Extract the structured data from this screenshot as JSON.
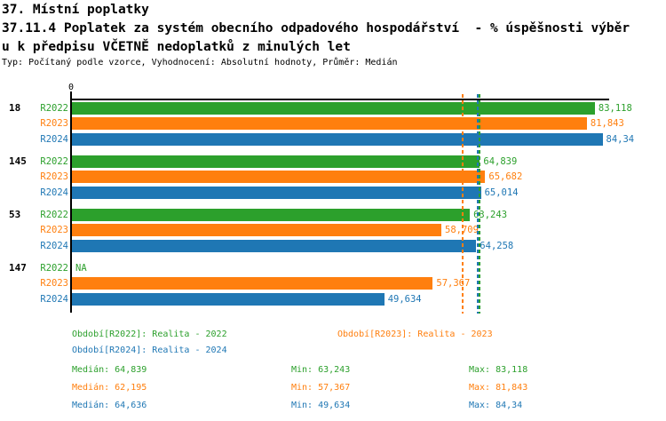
{
  "title": {
    "line1": "37. Místní poplatky",
    "line2": "37.11.4 Poplatek za systém obecního odpadového hospodářství  - % úspěšnosti výběr",
    "line3": "u k předpisu VČETNĚ nedoplatků z minulých let",
    "subtitle": "Typ: Počítaný podle vzorce, Vyhodnocení: Absolutní hodnoty, Průměr: Medián"
  },
  "colors": {
    "r2022": "#2ca02c",
    "r2023": "#ff7f0e",
    "r2024": "#1f77b4",
    "axis": "#000000"
  },
  "chart_data": {
    "type": "bar",
    "orientation": "horizontal",
    "xlim": [
      0,
      85.5
    ],
    "grid": false,
    "axis": {
      "zero_label": "0"
    },
    "series_labels": [
      "R2022",
      "R2023",
      "R2024"
    ],
    "series": [
      {
        "name": "R2022",
        "color": "#2ca02c",
        "median": 64.839,
        "min": 63.243,
        "max": 83.118
      },
      {
        "name": "R2023",
        "color": "#ff7f0e",
        "median": 62.195,
        "min": 57.367,
        "max": 81.843
      },
      {
        "name": "R2024",
        "color": "#1f77b4",
        "median": 64.636,
        "min": 49.634,
        "max": 84.34
      }
    ],
    "groups": [
      {
        "label": "18",
        "values": [
          83.118,
          81.843,
          84.34
        ],
        "display": [
          "83,118",
          "81,843",
          "84,34"
        ]
      },
      {
        "label": "145",
        "values": [
          64.839,
          65.682,
          65.014
        ],
        "display": [
          "64,839",
          "65,682",
          "65,014"
        ]
      },
      {
        "label": "53",
        "values": [
          63.243,
          58.709,
          64.258
        ],
        "display": [
          "63,243",
          "58,709",
          "64,258"
        ]
      },
      {
        "label": "147",
        "values": [
          null,
          57.367,
          49.634
        ],
        "display": [
          "NA",
          "57,367",
          "49,634"
        ]
      }
    ],
    "median_lines": [
      {
        "series": "R2023",
        "value": 62.195,
        "color": "#ff7f0e"
      },
      {
        "series": "R2024",
        "value": 64.636,
        "color": "#1f77b4"
      },
      {
        "series": "R2022",
        "value": 64.839,
        "color": "#2ca02c"
      }
    ]
  },
  "legend": {
    "periods": [
      {
        "label": "Období[R2022]: Realita - 2022"
      },
      {
        "label": "Období[R2023]: Realita - 2023"
      },
      {
        "label": "Období[R2024]: Realita - 2024"
      }
    ],
    "stats": [
      {
        "median": "Medián: 64,839",
        "min": "Min: 63,243",
        "max": "Max: 83,118"
      },
      {
        "median": "Medián: 62,195",
        "min": "Min: 57,367",
        "max": "Max: 81,843"
      },
      {
        "median": "Medián: 64,636",
        "min": "Min: 49,634",
        "max": "Max: 84,34"
      }
    ]
  }
}
